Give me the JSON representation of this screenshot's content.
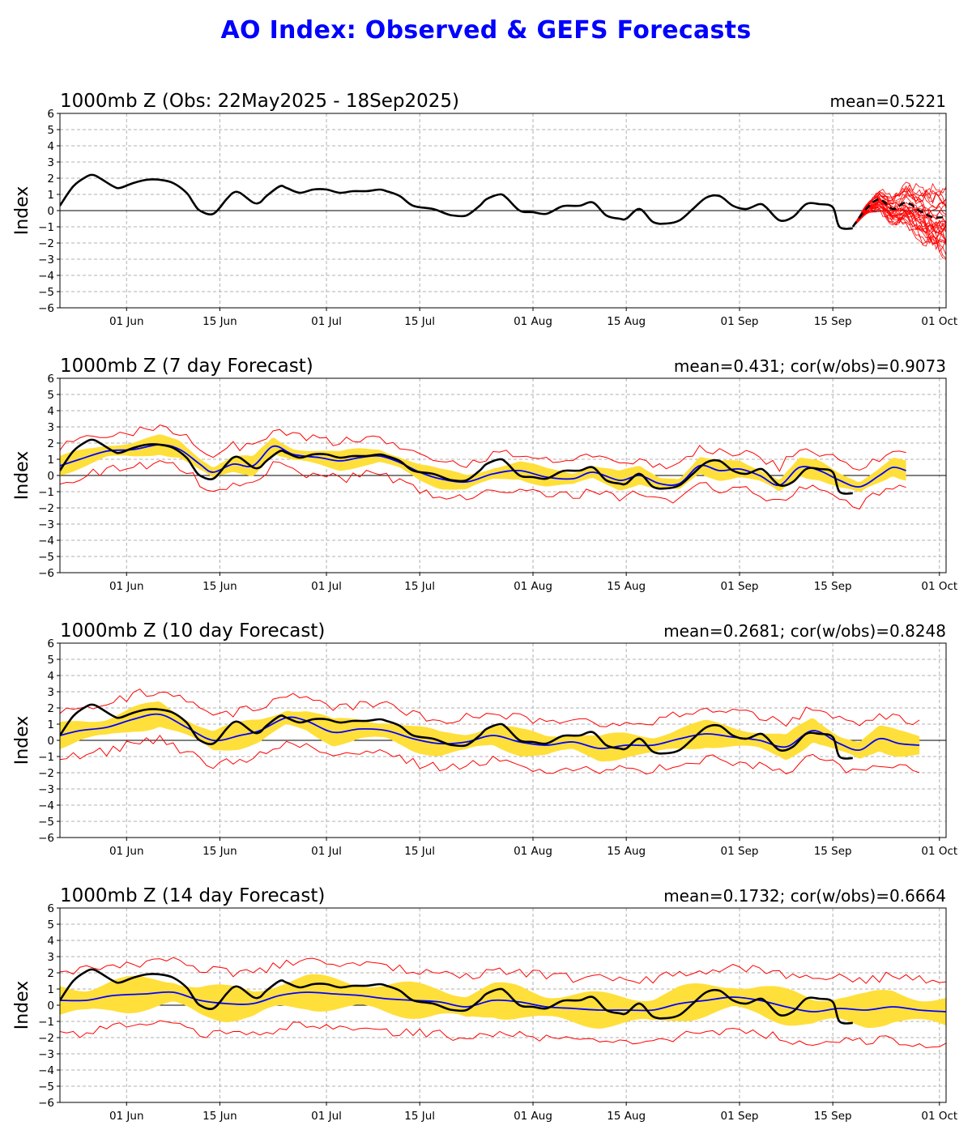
{
  "title": "AO Index: Observed & GEFS Forecasts",
  "colors": {
    "title": "#0000ff",
    "observed": "#000000",
    "ensemble_mean": "#0000ff",
    "spread_band": "#ffdf3a",
    "min_max": "#ff0000",
    "members": "#ff0000",
    "grid": "#b0b0b0"
  },
  "chart_data": [
    {
      "type": "line",
      "title": "1000mb Z (Obs: 22May2025 - 18Sep2025)",
      "stat": "mean=0.5221",
      "ylabel": "Index",
      "ylim": [
        -6,
        6
      ],
      "yticks": [
        -6,
        -5,
        -4,
        -3,
        -2,
        -1,
        0,
        1,
        2,
        3,
        4,
        5,
        6
      ],
      "xlim": [
        "2025-05-22",
        "2025-10-02"
      ],
      "xticks": [
        {
          "date": "2025-06-01",
          "label": "01 Jun"
        },
        {
          "date": "2025-06-15",
          "label": "15 Jun"
        },
        {
          "date": "2025-07-01",
          "label": "01 Jul"
        },
        {
          "date": "2025-07-15",
          "label": "15 Jul"
        },
        {
          "date": "2025-08-01",
          "label": "01 Aug"
        },
        {
          "date": "2025-08-15",
          "label": "15 Aug"
        },
        {
          "date": "2025-09-01",
          "label": "01 Sep"
        },
        {
          "date": "2025-09-15",
          "label": "15 Sep"
        },
        {
          "date": "2025-10-01",
          "label": "01 Oct"
        }
      ],
      "grid": true,
      "observed": {
        "x": [
          "2025-05-22",
          "2025-05-24",
          "2025-05-26",
          "2025-05-27",
          "2025-05-28",
          "2025-05-30",
          "2025-05-31",
          "2025-06-02",
          "2025-06-04",
          "2025-06-06",
          "2025-06-08",
          "2025-06-10",
          "2025-06-11",
          "2025-06-12",
          "2025-06-14",
          "2025-06-16",
          "2025-06-17",
          "2025-06-18",
          "2025-06-20",
          "2025-06-21",
          "2025-06-22",
          "2025-06-24",
          "2025-06-25",
          "2025-06-27",
          "2025-06-29",
          "2025-07-01",
          "2025-07-03",
          "2025-07-05",
          "2025-07-07",
          "2025-07-09",
          "2025-07-10",
          "2025-07-12",
          "2025-07-14",
          "2025-07-17",
          "2025-07-19",
          "2025-07-20",
          "2025-07-22",
          "2025-07-24",
          "2025-07-25",
          "2025-07-27",
          "2025-07-28",
          "2025-07-30",
          "2025-08-01",
          "2025-08-03",
          "2025-08-05",
          "2025-08-06",
          "2025-08-08",
          "2025-08-10",
          "2025-08-12",
          "2025-08-14",
          "2025-08-15",
          "2025-08-17",
          "2025-08-19",
          "2025-08-21",
          "2025-08-23",
          "2025-08-25",
          "2025-08-27",
          "2025-08-29",
          "2025-08-31",
          "2025-09-02",
          "2025-09-04",
          "2025-09-05",
          "2025-09-07",
          "2025-09-09",
          "2025-09-11",
          "2025-09-13",
          "2025-09-15",
          "2025-09-16",
          "2025-09-18"
        ],
        "y": [
          0.3,
          1.5,
          2.1,
          2.2,
          2.0,
          1.5,
          1.4,
          1.7,
          1.9,
          1.9,
          1.7,
          1.1,
          0.5,
          0.0,
          -0.2,
          0.7,
          1.1,
          1.1,
          0.5,
          0.5,
          0.9,
          1.5,
          1.4,
          1.1,
          1.3,
          1.3,
          1.1,
          1.2,
          1.2,
          1.3,
          1.2,
          0.9,
          0.3,
          0.1,
          -0.2,
          -0.3,
          -0.3,
          0.3,
          0.7,
          1.0,
          0.8,
          0.0,
          -0.1,
          -0.2,
          0.2,
          0.3,
          0.3,
          0.5,
          -0.3,
          -0.5,
          -0.5,
          0.1,
          -0.7,
          -0.8,
          -0.6,
          0.1,
          0.8,
          0.9,
          0.3,
          0.1,
          0.4,
          0.2,
          -0.6,
          -0.4,
          0.4,
          0.4,
          0.2,
          -1.0,
          -1.1
        ]
      },
      "ensemble_forecast": {
        "start": "2025-09-18",
        "member_count": 30,
        "mean": {
          "x": [
            "2025-09-18",
            "2025-09-20",
            "2025-09-22",
            "2025-09-24",
            "2025-09-26",
            "2025-09-28",
            "2025-09-30",
            "2025-10-02"
          ],
          "y": [
            -1.0,
            0.1,
            0.7,
            0.1,
            0.5,
            0.0,
            -0.4,
            -0.4
          ]
        },
        "min_y_at_end": -3.6,
        "max_y_at_end": 1.9
      }
    },
    {
      "type": "line",
      "title": "1000mb Z (7 day Forecast)",
      "stat": "mean=0.431; cor(w/obs)=0.9073",
      "ylabel": "Index",
      "ylim": [
        -6,
        6
      ],
      "yticks": [
        -6,
        -5,
        -4,
        -3,
        -2,
        -1,
        0,
        1,
        2,
        3,
        4,
        5,
        6
      ],
      "xlim": [
        "2025-05-22",
        "2025-10-02"
      ],
      "grid": true,
      "observed": "same as observed series in panel 1",
      "ensemble_mean": {
        "x": [
          "2025-05-22",
          "2025-05-25",
          "2025-05-29",
          "2025-06-02",
          "2025-06-06",
          "2025-06-09",
          "2025-06-12",
          "2025-06-14",
          "2025-06-17",
          "2025-06-20",
          "2025-06-23",
          "2025-06-26",
          "2025-06-30",
          "2025-07-03",
          "2025-07-06",
          "2025-07-09",
          "2025-07-12",
          "2025-07-15",
          "2025-07-18",
          "2025-07-22",
          "2025-07-26",
          "2025-07-30",
          "2025-08-03",
          "2025-08-07",
          "2025-08-10",
          "2025-08-14",
          "2025-08-17",
          "2025-08-20",
          "2025-08-23",
          "2025-08-26",
          "2025-08-29",
          "2025-09-01",
          "2025-09-04",
          "2025-09-07",
          "2025-09-10",
          "2025-09-13",
          "2025-09-16",
          "2025-09-19",
          "2025-09-22",
          "2025-09-24",
          "2025-09-26"
        ],
        "y": [
          0.6,
          1.0,
          1.5,
          1.6,
          1.9,
          1.6,
          0.7,
          0.2,
          0.7,
          0.6,
          1.8,
          1.3,
          1.1,
          0.9,
          1.1,
          1.2,
          0.8,
          0.2,
          -0.2,
          -0.4,
          0.1,
          0.3,
          -0.1,
          -0.2,
          0.2,
          -0.3,
          0.0,
          -0.5,
          -0.5,
          0.6,
          0.3,
          0.4,
          0.0,
          -0.6,
          0.5,
          0.3,
          -0.3,
          -0.7,
          0.0,
          0.5,
          0.3
        ]
      },
      "spread_halfwidth": 0.55,
      "outer_upper_offset": 1.1,
      "outer_lower_offset": 1.1
    },
    {
      "type": "line",
      "title": "1000mb Z (10 day Forecast)",
      "stat": "mean=0.2681; cor(w/obs)=0.8248",
      "ylabel": "Index",
      "ylim": [
        -6,
        6
      ],
      "yticks": [
        -6,
        -5,
        -4,
        -3,
        -2,
        -1,
        0,
        1,
        2,
        3,
        4,
        5,
        6
      ],
      "xlim": [
        "2025-05-22",
        "2025-10-02"
      ],
      "grid": true,
      "observed": "same as observed series in panel 1",
      "ensemble_mean": {
        "x": [
          "2025-05-22",
          "2025-05-25",
          "2025-05-29",
          "2025-06-02",
          "2025-06-06",
          "2025-06-10",
          "2025-06-14",
          "2025-06-18",
          "2025-06-21",
          "2025-06-25",
          "2025-06-28",
          "2025-07-02",
          "2025-07-06",
          "2025-07-10",
          "2025-07-14",
          "2025-07-18",
          "2025-07-22",
          "2025-07-26",
          "2025-07-30",
          "2025-08-03",
          "2025-08-07",
          "2025-08-11",
          "2025-08-15",
          "2025-08-19",
          "2025-08-23",
          "2025-08-27",
          "2025-08-31",
          "2025-09-04",
          "2025-09-08",
          "2025-09-12",
          "2025-09-16",
          "2025-09-19",
          "2025-09-22",
          "2025-09-25",
          "2025-09-28"
        ],
        "y": [
          0.3,
          0.6,
          0.8,
          1.3,
          1.6,
          0.8,
          0.0,
          0.3,
          0.6,
          1.4,
          1.2,
          0.5,
          0.7,
          0.6,
          0.1,
          -0.2,
          -0.1,
          0.3,
          -0.1,
          -0.3,
          -0.1,
          -0.5,
          -0.3,
          -0.3,
          0.1,
          0.4,
          0.2,
          0.0,
          -0.4,
          0.6,
          -0.2,
          -0.6,
          0.1,
          -0.2,
          -0.3
        ]
      },
      "spread_halfwidth": 0.75,
      "outer_upper_offset": 1.5,
      "outer_lower_offset": 1.5
    },
    {
      "type": "line",
      "title": "1000mb Z (14 day Forecast)",
      "stat": "mean=0.1732; cor(w/obs)=0.6664",
      "ylabel": "Index",
      "ylim": [
        -6,
        6
      ],
      "yticks": [
        -6,
        -5,
        -4,
        -3,
        -2,
        -1,
        0,
        1,
        2,
        3,
        4,
        5,
        6
      ],
      "xlim": [
        "2025-05-22",
        "2025-10-02"
      ],
      "grid": true,
      "observed": "same as observed series in panel 1",
      "ensemble_mean": {
        "x": [
          "2025-05-22",
          "2025-05-26",
          "2025-05-30",
          "2025-06-04",
          "2025-06-08",
          "2025-06-12",
          "2025-06-16",
          "2025-06-20",
          "2025-06-24",
          "2025-06-28",
          "2025-07-02",
          "2025-07-06",
          "2025-07-10",
          "2025-07-14",
          "2025-07-18",
          "2025-07-22",
          "2025-07-26",
          "2025-07-30",
          "2025-08-03",
          "2025-08-07",
          "2025-08-11",
          "2025-08-15",
          "2025-08-19",
          "2025-08-23",
          "2025-08-27",
          "2025-08-31",
          "2025-09-04",
          "2025-09-08",
          "2025-09-12",
          "2025-09-16",
          "2025-09-20",
          "2025-09-24",
          "2025-09-28",
          "2025-10-02"
        ],
        "y": [
          0.3,
          0.3,
          0.6,
          0.7,
          0.8,
          0.3,
          0.1,
          0.1,
          0.6,
          0.8,
          0.7,
          0.6,
          0.4,
          0.3,
          0.2,
          -0.1,
          0.3,
          0.2,
          -0.1,
          -0.2,
          -0.3,
          -0.3,
          -0.3,
          0.1,
          0.3,
          0.5,
          0.3,
          -0.1,
          -0.4,
          -0.2,
          -0.3,
          -0.1,
          -0.3,
          -0.4
        ]
      },
      "spread_halfwidth": 1.0,
      "outer_upper_offset": 1.9,
      "outer_lower_offset": 2.0
    }
  ]
}
